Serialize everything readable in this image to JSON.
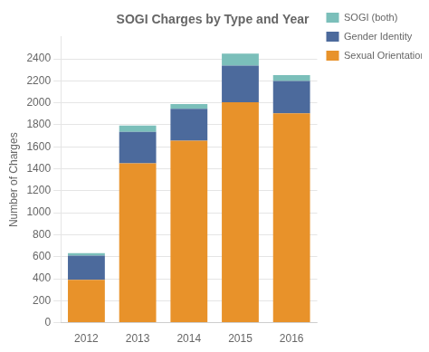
{
  "chart_data": {
    "type": "bar",
    "title": "SOGI Charges by Type and Year",
    "categories": [
      "2012",
      "2013",
      "2014",
      "2015",
      "2016"
    ],
    "series": [
      {
        "name": "Sexual Orientation",
        "color": "#E8922A",
        "values": [
          390,
          1450,
          1655,
          2005,
          1905
        ]
      },
      {
        "name": "Gender Identity",
        "color": "#4C6A9C",
        "values": [
          220,
          285,
          290,
          335,
          295
        ]
      },
      {
        "name": "SOGI (both)",
        "color": "#7BBFBA",
        "values": [
          22,
          58,
          45,
          108,
          52
        ]
      }
    ],
    "ylabel": "Number of Charges",
    "ylim": [
      0,
      2600
    ],
    "yticks": [
      0,
      200,
      400,
      600,
      800,
      1000,
      1200,
      1400,
      1600,
      1800,
      2000,
      2200,
      2400
    ],
    "stacked": true,
    "grid": true,
    "legend": "right"
  }
}
